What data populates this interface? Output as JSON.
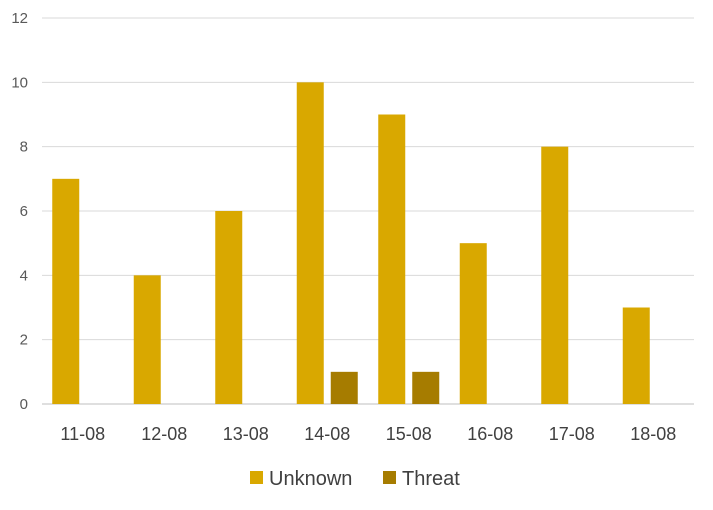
{
  "chart_data": {
    "type": "bar",
    "categories": [
      "11-08",
      "12-08",
      "13-08",
      "14-08",
      "15-08",
      "16-08",
      "17-08",
      "18-08"
    ],
    "series": [
      {
        "name": "Unknown",
        "color": "#D9A800",
        "values": [
          7,
          4,
          6,
          10,
          9,
          5,
          8,
          3
        ]
      },
      {
        "name": "Threat",
        "color": "#A67C00",
        "values": [
          0,
          0,
          0,
          1,
          1,
          0,
          0,
          0
        ]
      }
    ],
    "yticks": [
      "0",
      "2",
      "4",
      "6",
      "8",
      "10",
      "12"
    ],
    "ylim": [
      0,
      12
    ],
    "grid": true,
    "legend_position": "bottom"
  }
}
